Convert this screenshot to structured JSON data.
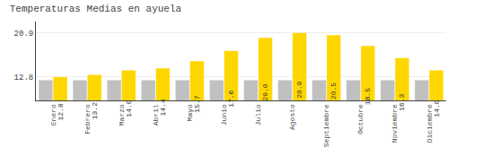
{
  "chart_data": {
    "type": "bar",
    "title": "Temperaturas Medias en ayuela",
    "categories": [
      "Enero",
      "Febrero",
      "Marzo",
      "Abril",
      "Mayo",
      "Junio",
      "Julio",
      "Agosto",
      "Septiembre",
      "Octubre",
      "Noviembre",
      "Diciembre"
    ],
    "series": [
      {
        "color": "#C0C0C0",
        "values": [
          12.2,
          12.2,
          12.2,
          12.2,
          12.2,
          12.2,
          12.2,
          12.2,
          12.2,
          12.2,
          12.2,
          12.2
        ]
      },
      {
        "color": "#FFD700",
        "values": [
          12.8,
          13.2,
          14.0,
          14.4,
          15.7,
          17.6,
          20.0,
          20.9,
          20.5,
          18.5,
          16.3,
          14.0
        ],
        "value_labels": [
          "12.8",
          "13.2",
          "14.0",
          "14.4",
          "15.7",
          "17.6",
          "20.0",
          "20.9",
          "20.5",
          "18.5",
          "16.3",
          "14.0"
        ],
        "data_labels": true
      }
    ],
    "ylim": [
      8.5,
      23.0
    ],
    "yticks": [
      12.8,
      20.9
    ],
    "y2lim": [
      8.5,
      23.0
    ],
    "y2ticks": [
      12.8,
      20.9
    ],
    "grid": true
  }
}
